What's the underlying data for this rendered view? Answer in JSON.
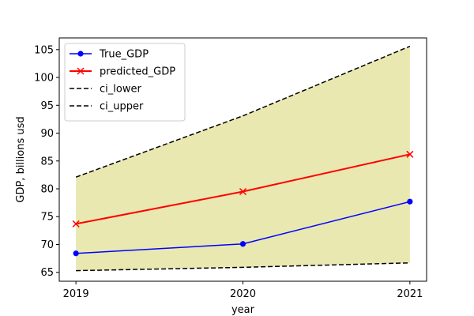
{
  "chart_data": {
    "type": "line",
    "title": "",
    "xlabel": "year",
    "ylabel": "GDP, billions usd",
    "x": [
      "2019",
      "2020",
      "2021"
    ],
    "xlim": [
      2018.9,
      2021.1
    ],
    "ylim": [
      63.4,
      107.1
    ],
    "yticks": [
      65,
      70,
      75,
      80,
      85,
      90,
      95,
      100,
      105
    ],
    "grid": false,
    "legend_position": "upper-left",
    "fill_between": {
      "lower": "ci_lower",
      "upper": "ci_upper",
      "color": "#e8e8b0"
    },
    "series": [
      {
        "name": "True_GDP",
        "values": [
          68.4,
          70.1,
          77.7
        ],
        "color": "#0000ff",
        "marker": "circle",
        "linestyle": "solid"
      },
      {
        "name": "predicted_GDP",
        "values": [
          73.7,
          79.5,
          86.2
        ],
        "color": "#ff0000",
        "marker": "x",
        "linestyle": "solid"
      },
      {
        "name": "ci_lower",
        "values": [
          65.3,
          65.9,
          66.7
        ],
        "color": "#000000",
        "marker": "none",
        "linestyle": "dashed"
      },
      {
        "name": "ci_upper",
        "values": [
          82.1,
          93.1,
          105.6
        ],
        "color": "#000000",
        "marker": "none",
        "linestyle": "dashed"
      }
    ]
  }
}
